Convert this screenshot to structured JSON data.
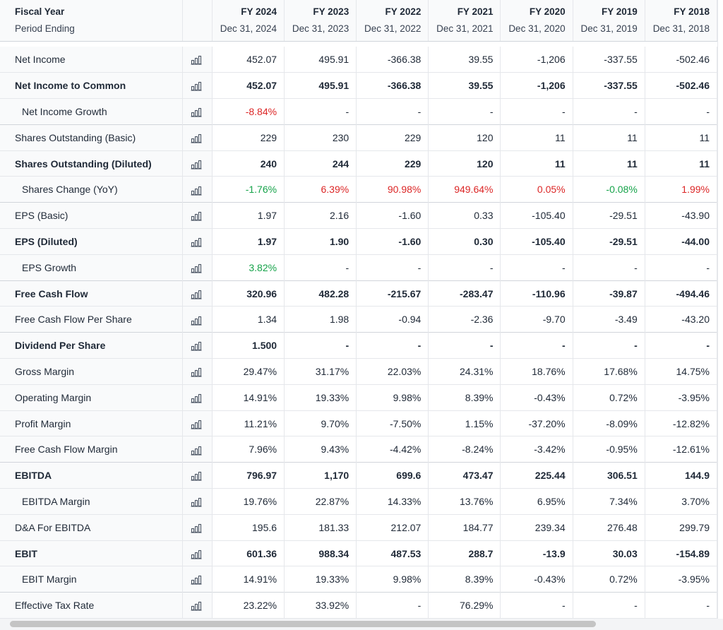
{
  "header": {
    "label_title": "Fiscal Year",
    "label_sub": "Period Ending",
    "years": [
      {
        "fy": "FY 2024",
        "date": "Dec 31, 2024"
      },
      {
        "fy": "FY 2023",
        "date": "Dec 31, 2023"
      },
      {
        "fy": "FY 2022",
        "date": "Dec 31, 2022"
      },
      {
        "fy": "FY 2021",
        "date": "Dec 31, 2021"
      },
      {
        "fy": "FY 2020",
        "date": "Dec 31, 2020"
      },
      {
        "fy": "FY 2019",
        "date": "Dec 31, 2019"
      },
      {
        "fy": "FY 2018",
        "date": "Dec 31, 2018"
      }
    ]
  },
  "rows": [
    {
      "label": "Net Income",
      "bold": false,
      "indent": false,
      "sect": false,
      "color": "",
      "values": [
        "452.07",
        "495.91",
        "-366.38",
        "39.55",
        "-1,206",
        "-337.55",
        "-502.46"
      ]
    },
    {
      "label": "Net Income to Common",
      "bold": true,
      "indent": false,
      "sect": false,
      "color": "",
      "values": [
        "452.07",
        "495.91",
        "-366.38",
        "39.55",
        "-1,206",
        "-337.55",
        "-502.46"
      ]
    },
    {
      "label": "Net Income Growth",
      "bold": false,
      "indent": true,
      "sect": true,
      "color": "",
      "values": [
        "-8.84%",
        "-",
        "-",
        "-",
        "-",
        "-",
        "-"
      ],
      "colors": [
        "neg",
        "",
        "",
        "",
        "",
        "",
        ""
      ]
    },
    {
      "label": "Shares Outstanding (Basic)",
      "bold": false,
      "indent": false,
      "sect": false,
      "color": "",
      "values": [
        "229",
        "230",
        "229",
        "120",
        "11",
        "11",
        "11"
      ]
    },
    {
      "label": "Shares Outstanding (Diluted)",
      "bold": true,
      "indent": false,
      "sect": false,
      "color": "",
      "values": [
        "240",
        "244",
        "229",
        "120",
        "11",
        "11",
        "11"
      ]
    },
    {
      "label": "Shares Change (YoY)",
      "bold": false,
      "indent": true,
      "sect": true,
      "color": "",
      "values": [
        "-1.76%",
        "6.39%",
        "90.98%",
        "949.64%",
        "0.05%",
        "-0.08%",
        "1.99%"
      ],
      "colors": [
        "pos",
        "neg",
        "neg",
        "neg",
        "neg",
        "pos",
        "neg"
      ]
    },
    {
      "label": "EPS (Basic)",
      "bold": false,
      "indent": false,
      "sect": false,
      "color": "",
      "values": [
        "1.97",
        "2.16",
        "-1.60",
        "0.33",
        "-105.40",
        "-29.51",
        "-43.90"
      ]
    },
    {
      "label": "EPS (Diluted)",
      "bold": true,
      "indent": false,
      "sect": false,
      "color": "",
      "values": [
        "1.97",
        "1.90",
        "-1.60",
        "0.30",
        "-105.40",
        "-29.51",
        "-44.00"
      ]
    },
    {
      "label": "EPS Growth",
      "bold": false,
      "indent": true,
      "sect": true,
      "color": "",
      "values": [
        "3.82%",
        "-",
        "-",
        "-",
        "-",
        "-",
        "-"
      ],
      "colors": [
        "pos",
        "",
        "",
        "",
        "",
        "",
        ""
      ]
    },
    {
      "label": "Free Cash Flow",
      "bold": true,
      "indent": false,
      "sect": false,
      "color": "",
      "values": [
        "320.96",
        "482.28",
        "-215.67",
        "-283.47",
        "-110.96",
        "-39.87",
        "-494.46"
      ]
    },
    {
      "label": "Free Cash Flow Per Share",
      "bold": false,
      "indent": false,
      "sect": true,
      "color": "",
      "values": [
        "1.34",
        "1.98",
        "-0.94",
        "-2.36",
        "-9.70",
        "-3.49",
        "-43.20"
      ]
    },
    {
      "label": "Dividend Per Share",
      "bold": true,
      "indent": false,
      "sect": false,
      "color": "",
      "values": [
        "1.500",
        "-",
        "-",
        "-",
        "-",
        "-",
        "-"
      ]
    },
    {
      "label": "Gross Margin",
      "bold": false,
      "indent": false,
      "sect": false,
      "color": "",
      "values": [
        "29.47%",
        "31.17%",
        "22.03%",
        "24.31%",
        "18.76%",
        "17.68%",
        "14.75%"
      ]
    },
    {
      "label": "Operating Margin",
      "bold": false,
      "indent": false,
      "sect": false,
      "color": "",
      "values": [
        "14.91%",
        "19.33%",
        "9.98%",
        "8.39%",
        "-0.43%",
        "0.72%",
        "-3.95%"
      ]
    },
    {
      "label": "Profit Margin",
      "bold": false,
      "indent": false,
      "sect": false,
      "color": "",
      "values": [
        "11.21%",
        "9.70%",
        "-7.50%",
        "1.15%",
        "-37.20%",
        "-8.09%",
        "-12.82%"
      ]
    },
    {
      "label": "Free Cash Flow Margin",
      "bold": false,
      "indent": false,
      "sect": true,
      "color": "",
      "values": [
        "7.96%",
        "9.43%",
        "-4.42%",
        "-8.24%",
        "-3.42%",
        "-0.95%",
        "-12.61%"
      ]
    },
    {
      "label": "EBITDA",
      "bold": true,
      "indent": false,
      "sect": false,
      "color": "",
      "values": [
        "796.97",
        "1,170",
        "699.6",
        "473.47",
        "225.44",
        "306.51",
        "144.9"
      ]
    },
    {
      "label": "EBITDA Margin",
      "bold": false,
      "indent": true,
      "sect": false,
      "color": "",
      "values": [
        "19.76%",
        "22.87%",
        "14.33%",
        "13.76%",
        "6.95%",
        "7.34%",
        "3.70%"
      ]
    },
    {
      "label": "D&A For EBITDA",
      "bold": false,
      "indent": false,
      "sect": false,
      "color": "",
      "values": [
        "195.6",
        "181.33",
        "212.07",
        "184.77",
        "239.34",
        "276.48",
        "299.79"
      ]
    },
    {
      "label": "EBIT",
      "bold": true,
      "indent": false,
      "sect": false,
      "color": "",
      "values": [
        "601.36",
        "988.34",
        "487.53",
        "288.7",
        "-13.9",
        "30.03",
        "-154.89"
      ]
    },
    {
      "label": "EBIT Margin",
      "bold": false,
      "indent": true,
      "sect": true,
      "color": "",
      "values": [
        "14.91%",
        "19.33%",
        "9.98%",
        "8.39%",
        "-0.43%",
        "0.72%",
        "-3.95%"
      ]
    },
    {
      "label": "Effective Tax Rate",
      "bold": false,
      "indent": false,
      "sect": false,
      "color": "",
      "values": [
        "23.22%",
        "33.92%",
        "-",
        "76.29%",
        "-",
        "-",
        "-"
      ]
    }
  ],
  "icons": {
    "chart": "bar-chart-icon"
  },
  "colors": {
    "negative": "#dc2626",
    "positive": "#16a34a",
    "header_bg": "#f9fafb"
  }
}
